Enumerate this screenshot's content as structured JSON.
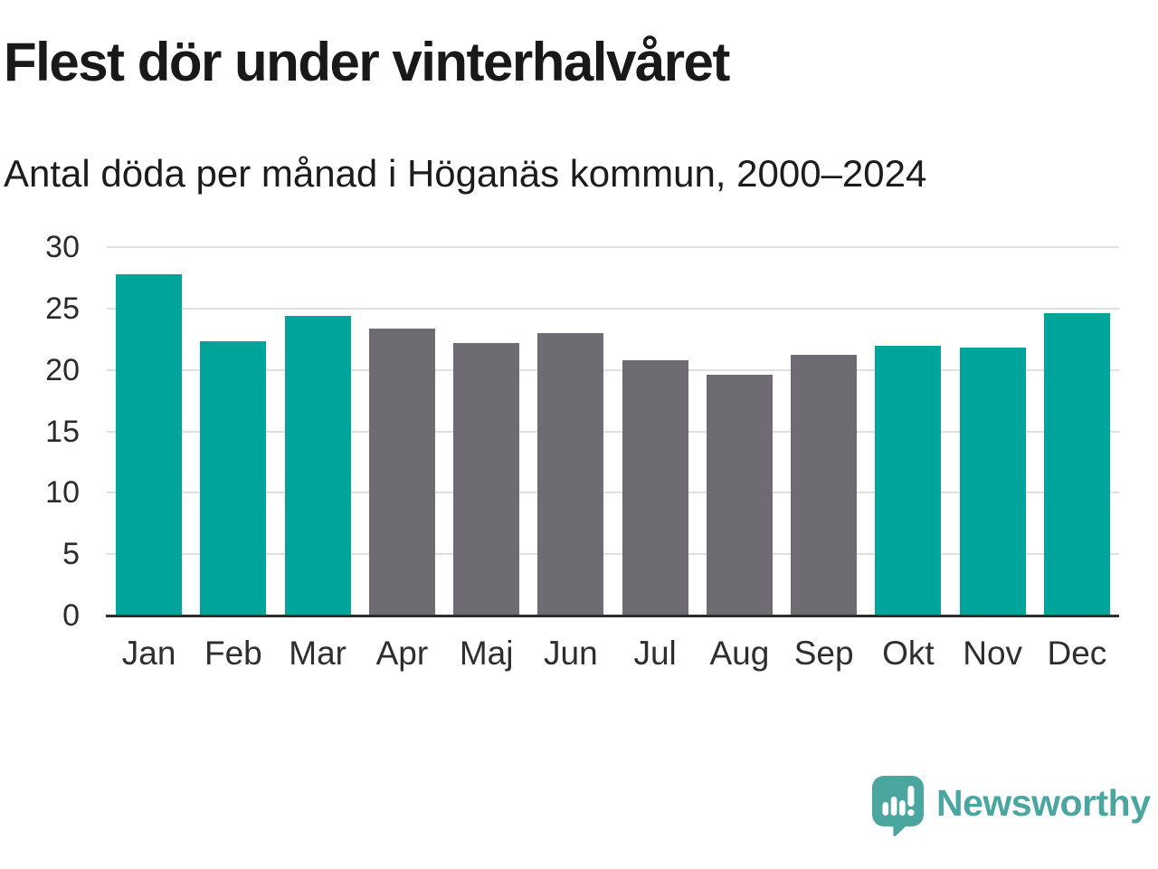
{
  "header": {
    "title": "Flest dör under vinterhalvåret",
    "subtitle": "Antal döda per månad i Höganäs kommun, 2000–2024"
  },
  "chart_data": {
    "type": "bar",
    "title": "Flest dör under vinterhalvåret",
    "subtitle": "Antal döda per månad i Höganäs kommun, 2000–2024",
    "categories": [
      "Jan",
      "Feb",
      "Mar",
      "Apr",
      "Maj",
      "Jun",
      "Jul",
      "Aug",
      "Sep",
      "Okt",
      "Nov",
      "Dec"
    ],
    "values": [
      27.8,
      22.3,
      24.4,
      23.4,
      22.2,
      23.0,
      20.8,
      19.6,
      21.2,
      22.0,
      21.8,
      24.6
    ],
    "bar_colors": [
      "#00A49B",
      "#00A49B",
      "#00A49B",
      "#6E6C72",
      "#6E6C72",
      "#6E6C72",
      "#6E6C72",
      "#6E6C72",
      "#6E6C72",
      "#00A49B",
      "#00A49B",
      "#00A49B"
    ],
    "highlighted_categories": [
      "Jan",
      "Feb",
      "Mar",
      "Okt",
      "Nov",
      "Dec"
    ],
    "xlabel": "",
    "ylabel": "",
    "ylim": [
      0,
      30
    ],
    "yticks": [
      0,
      5,
      10,
      15,
      20,
      25,
      30
    ],
    "grid": true,
    "legend_position": "none"
  },
  "footer": {
    "brand": "Newsworthy"
  },
  "colors": {
    "accent_teal": "#00A49B",
    "bar_gray": "#6E6C72",
    "gridline": "#E0E0E0",
    "axis_line": "#2E2E2E",
    "text_dark": "#191919",
    "tick_text": "#2B2B2B",
    "logo_teal": "#4BA6A0"
  }
}
